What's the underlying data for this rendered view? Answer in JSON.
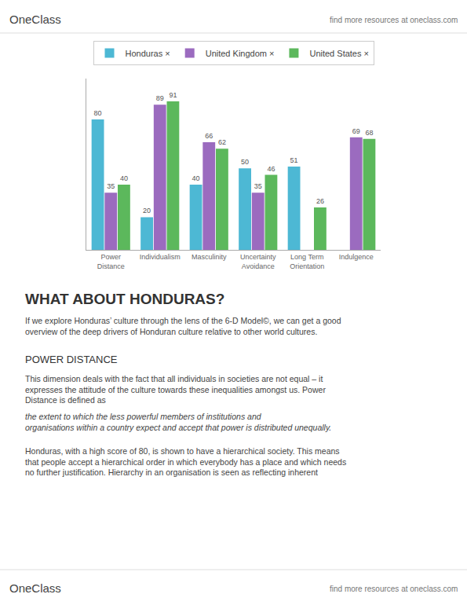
{
  "chart_data": {
    "type": "bar",
    "categories": [
      "Power\nDistance",
      "Individualism",
      "Masculinity",
      "Uncertainty\nAvoidance",
      "Long Term\nOrientation",
      "Indulgence"
    ],
    "series": [
      {
        "name": "Honduras ×",
        "color": "#4db8d4",
        "values": [
          80,
          20,
          40,
          50,
          51,
          null
        ]
      },
      {
        "name": "United Kingdom ×",
        "color": "#9b6bbf",
        "values": [
          35,
          89,
          66,
          35,
          null,
          69
        ]
      },
      {
        "name": "United States ×",
        "color": "#5cb85c",
        "values": [
          40,
          91,
          62,
          46,
          26,
          68
        ]
      }
    ],
    "ylim": [
      0,
      105
    ],
    "tick_labels": "x",
    "grid": false,
    "data_labels": true,
    "legend": "top",
    "annotations": [
      "OneClass",
      "find more resources at oneclass.com",
      "WHAT ABOUT HONDURAS?",
      "If we explore Honduras’ culture through the lens of the 6-D Model©, we can get a good\noverview of the deep drivers of Honduran culture relative to other world cultures.",
      "POWER DISTANCE",
      "This dimension deals with the fact that all individuals in societies are not equal – it\nexpresses the attitude of the culture towards these inequalities amongst us. Power\nDistance is defined as ",
      "the extent to which the less powerful members of institutions and\norganisations within a country expect and accept that power is distributed unequally.",
      "Honduras, with a high score of 80, is shown to have a hierarchical society. This means\nthat people accept a hierarchical order in which everybody has a place and which needs\nno further justification. Hierarchy in an organisation is seen as reflecting inherent",
      "OneClass",
      "find more resources at oneclass.com"
    ]
  }
}
